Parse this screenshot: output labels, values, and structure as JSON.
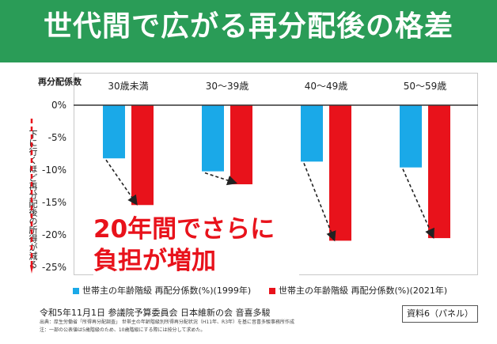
{
  "title": "世代間で広がる再分配後の格差",
  "colors": {
    "header_bg": "#2a9c57",
    "series_1999": "#1aa9e8",
    "series_2021": "#e8121b",
    "arrow": "#222222",
    "grid": "#333333"
  },
  "side_note": "下に行くほど再分配後の所得が減る",
  "annotation": "20年間でさらに負担が増加",
  "footer": {
    "main": "令和5年11月1日 参議院予算委員会 日本維新の会 音喜多駿",
    "source": "出典：厚生労働省「所得再分配調査」 世帯主の年齢階級別所得再分配状況（H11年、R3年）を基に音喜多駿事務所作成",
    "note": "注：一部の公表値は5歳階級のため、10歳階級にする際には按分して求めた。"
  },
  "panel_label": "資料6（パネル）",
  "chart_data": {
    "type": "bar",
    "ylabel": "再分配係数",
    "categories": [
      "30歳未満",
      "30〜39歳",
      "40〜49歳",
      "50〜59歳"
    ],
    "series": [
      {
        "name": "世帯主の年齢階級 再配分係数(%)(1999年)",
        "values": [
          -8.2,
          -10.2,
          -8.7,
          -9.6
        ]
      },
      {
        "name": "世帯主の年齢階級 再配分係数(%)(2021年)",
        "values": [
          -15.4,
          -12.2,
          -20.9,
          -20.5
        ]
      }
    ],
    "yticks": [
      "0%",
      "-5%",
      "-10%",
      "-15%",
      "-20%",
      "-25%"
    ],
    "ytick_values": [
      0,
      -5,
      -10,
      -15,
      -20,
      -25
    ],
    "ylim": [
      -25,
      0
    ],
    "grid": false,
    "legend_position": "bottom"
  }
}
